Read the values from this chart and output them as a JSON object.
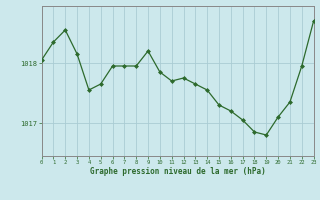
{
  "x": [
    0,
    1,
    2,
    3,
    4,
    5,
    6,
    7,
    8,
    9,
    10,
    11,
    12,
    13,
    14,
    15,
    16,
    17,
    18,
    19,
    20,
    21,
    22,
    23
  ],
  "y": [
    1018.05,
    1018.35,
    1018.55,
    1018.15,
    1017.55,
    1017.65,
    1017.95,
    1017.95,
    1017.95,
    1018.2,
    1017.85,
    1017.7,
    1017.75,
    1017.65,
    1017.55,
    1017.3,
    1017.2,
    1017.05,
    1016.85,
    1016.8,
    1017.1,
    1017.35,
    1017.95,
    1018.7
  ],
  "line_color": "#2d6a2d",
  "marker_color": "#2d6a2d",
  "bg_color": "#cce8ec",
  "grid_color": "#aaccd4",
  "axis_color": "#888888",
  "title_color": "#2d6a2d",
  "title": "Graphe pression niveau de la mer (hPa)",
  "ytick_vals": [
    1017.0,
    1018.0
  ],
  "ytick_labels": [
    "1017",
    "1018"
  ],
  "xlim": [
    0,
    23
  ],
  "ylim": [
    1016.45,
    1018.95
  ]
}
